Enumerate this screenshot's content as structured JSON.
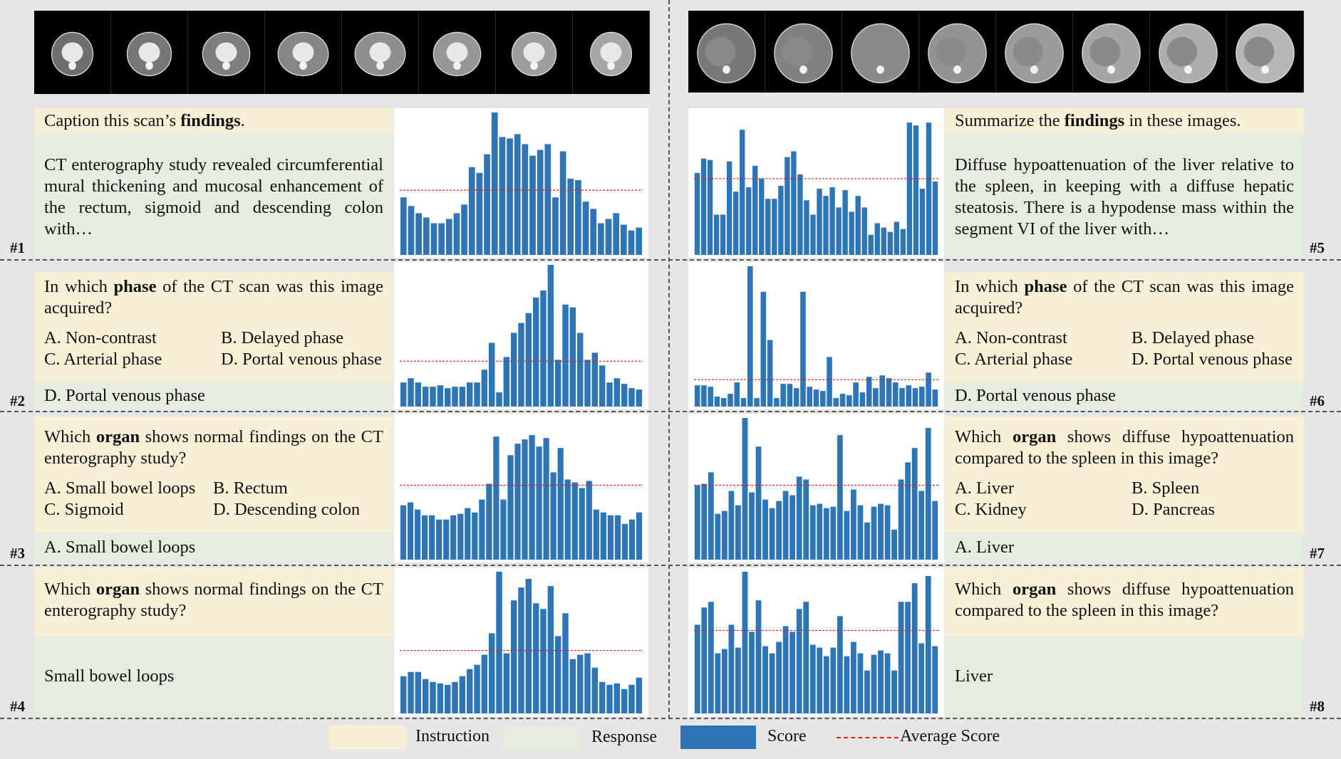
{
  "panels": {
    "p1": {
      "label": "#1",
      "instruction_pre": "Caption this scan’s ",
      "instruction_bold": "findings",
      "instruction_post": ".",
      "response": "CT enterography study revealed circumferential mural thickening and mucosal enhancement of the rectum, sigmoid and descending colon with…"
    },
    "p2": {
      "label": "#2",
      "instruction_pre": "In which ",
      "instruction_bold": "phase",
      "instruction_post": " of the CT scan was this image acquired?",
      "opt_a": "A. Non-contrast",
      "opt_b": "B. Delayed phase",
      "opt_c": "C. Arterial phase",
      "opt_d": "D. Portal venous phase",
      "response": "D. Portal venous phase"
    },
    "p3": {
      "label": "#3",
      "instruction_pre": "Which ",
      "instruction_bold": "organ",
      "instruction_post": " shows normal findings on the CT enterography study?",
      "opt_a": "A. Small bowel loops",
      "opt_b": "B. Rectum",
      "opt_c": "C. Sigmoid",
      "opt_d": "D. Descending colon",
      "response": "A. Small bowel loops"
    },
    "p4": {
      "label": "#4",
      "instruction_pre": "Which ",
      "instruction_bold": "organ",
      "instruction_post": " shows normal findings on the CT enterography study?",
      "response": "Small bowel loops"
    },
    "p5": {
      "label": "#5",
      "instruction_pre": "Summarize the ",
      "instruction_bold": "findings",
      "instruction_post": " in these images.",
      "response": "Diffuse hypoattenuation of the liver relative to the spleen, in keeping with a diffuse hepatic steatosis. There is a hypodense mass within the segment VI of the liver with…"
    },
    "p6": {
      "label": "#6",
      "instruction_pre": "In which ",
      "instruction_bold": "phase",
      "instruction_post": " of the CT scan was this image acquired?",
      "opt_a": "A. Non-contrast",
      "opt_b": "B. Delayed phase",
      "opt_c": "C. Arterial phase",
      "opt_d": "D. Portal venous phase",
      "response": "D. Portal venous phase"
    },
    "p7": {
      "label": "#7",
      "instruction_pre": "Which ",
      "instruction_bold": "organ",
      "instruction_post": " shows diffuse hypoattenuation compared to the spleen in this image?",
      "opt_a": "A. Liver",
      "opt_b": "B. Spleen",
      "opt_c": "C. Kidney",
      "opt_d": "D. Pancreas",
      "response": "A. Liver"
    },
    "p8": {
      "label": "#8",
      "instruction_pre": "Which ",
      "instruction_bold": "organ",
      "instruction_post": " shows diffuse hypoattenuation compared to the spleen in this image?",
      "response": "Liver"
    }
  },
  "legend": {
    "instruction": "Instruction",
    "response": "Response",
    "score": "Score",
    "average": "Average Score"
  },
  "colors": {
    "bar": "#2e75b6",
    "average": "#e02020",
    "instruction": "#f8efd7",
    "response": "#e6ecdf"
  },
  "chart_data": [
    {
      "panel": "#1",
      "type": "bar",
      "ylim": [
        0,
        1
      ],
      "average": 0.45,
      "values": [
        0.4,
        0.34,
        0.29,
        0.26,
        0.22,
        0.22,
        0.25,
        0.29,
        0.35,
        0.61,
        0.57,
        0.7,
        0.99,
        0.82,
        0.81,
        0.84,
        0.77,
        0.69,
        0.73,
        0.77,
        0.4,
        0.72,
        0.53,
        0.52,
        0.37,
        0.32,
        0.22,
        0.25,
        0.29,
        0.21,
        0.17,
        0.19
      ]
    },
    {
      "panel": "#5",
      "type": "bar",
      "ylim": [
        0,
        1
      ],
      "average": 0.53,
      "values": [
        0.57,
        0.67,
        0.66,
        0.28,
        0.28,
        0.65,
        0.44,
        0.87,
        0.47,
        0.62,
        0.53,
        0.39,
        0.39,
        0.48,
        0.68,
        0.72,
        0.56,
        0.38,
        0.28,
        0.46,
        0.41,
        0.47,
        0.33,
        0.45,
        0.3,
        0.41,
        0.33,
        0.14,
        0.22,
        0.19,
        0.16,
        0.23,
        0.18,
        0.92,
        0.9,
        0.46,
        0.92,
        0.51
      ]
    },
    {
      "panel": "#2",
      "type": "bar",
      "ylim": [
        0,
        1
      ],
      "average": 0.32,
      "values": [
        0.17,
        0.2,
        0.17,
        0.14,
        0.14,
        0.15,
        0.13,
        0.14,
        0.14,
        0.17,
        0.17,
        0.26,
        0.45,
        0.1,
        0.35,
        0.52,
        0.59,
        0.66,
        0.77,
        0.82,
        1.0,
        0.33,
        0.72,
        0.7,
        0.52,
        0.33,
        0.38,
        0.29,
        0.17,
        0.2,
        0.16,
        0.13,
        0.12
      ]
    },
    {
      "panel": "#6",
      "type": "bar",
      "ylim": [
        0,
        1
      ],
      "average": 0.19,
      "values": [
        0.15,
        0.15,
        0.14,
        0.07,
        0.06,
        0.09,
        0.17,
        0.06,
        0.99,
        0.06,
        0.81,
        0.47,
        0.06,
        0.16,
        0.16,
        0.13,
        0.81,
        0.14,
        0.12,
        0.11,
        0.35,
        0.06,
        0.09,
        0.08,
        0.17,
        0.1,
        0.21,
        0.13,
        0.22,
        0.2,
        0.17,
        0.13,
        0.15,
        0.13,
        0.14,
        0.24,
        0.12
      ]
    },
    {
      "panel": "#3",
      "type": "bar",
      "ylim": [
        0,
        1
      ],
      "average": 0.52,
      "values": [
        0.38,
        0.4,
        0.35,
        0.31,
        0.31,
        0.28,
        0.28,
        0.31,
        0.32,
        0.36,
        0.33,
        0.42,
        0.53,
        0.86,
        0.42,
        0.73,
        0.81,
        0.84,
        0.87,
        0.79,
        0.85,
        0.61,
        0.78,
        0.56,
        0.54,
        0.5,
        0.55,
        0.35,
        0.33,
        0.31,
        0.31,
        0.25,
        0.28,
        0.33
      ]
    },
    {
      "panel": "#7",
      "type": "bar",
      "ylim": [
        0,
        1
      ],
      "average": 0.52,
      "values": [
        0.52,
        0.53,
        0.61,
        0.32,
        0.34,
        0.48,
        0.38,
        0.99,
        0.47,
        0.79,
        0.42,
        0.36,
        0.41,
        0.48,
        0.45,
        0.58,
        0.56,
        0.38,
        0.39,
        0.36,
        0.37,
        0.87,
        0.34,
        0.49,
        0.38,
        0.26,
        0.37,
        0.39,
        0.38,
        0.21,
        0.56,
        0.68,
        0.78,
        0.48,
        0.92,
        0.41
      ]
    },
    {
      "panel": "#4",
      "type": "bar",
      "ylim": [
        0,
        1
      ],
      "average": 0.44,
      "values": [
        0.26,
        0.29,
        0.29,
        0.24,
        0.22,
        0.21,
        0.2,
        0.22,
        0.26,
        0.31,
        0.34,
        0.41,
        0.56,
        0.99,
        0.42,
        0.79,
        0.88,
        0.94,
        0.77,
        0.73,
        0.89,
        0.54,
        0.7,
        0.38,
        0.41,
        0.42,
        0.32,
        0.22,
        0.2,
        0.21,
        0.17,
        0.2,
        0.25
      ]
    },
    {
      "panel": "#8",
      "type": "bar",
      "ylim": [
        0,
        1
      ],
      "average": 0.58,
      "values": [
        0.62,
        0.74,
        0.78,
        0.42,
        0.45,
        0.62,
        0.46,
        0.99,
        0.57,
        0.79,
        0.47,
        0.42,
        0.5,
        0.61,
        0.57,
        0.73,
        0.78,
        0.48,
        0.46,
        0.4,
        0.46,
        0.68,
        0.4,
        0.5,
        0.42,
        0.3,
        0.41,
        0.44,
        0.42,
        0.3,
        0.78,
        0.78,
        0.91,
        0.49,
        0.96,
        0.47
      ]
    }
  ]
}
